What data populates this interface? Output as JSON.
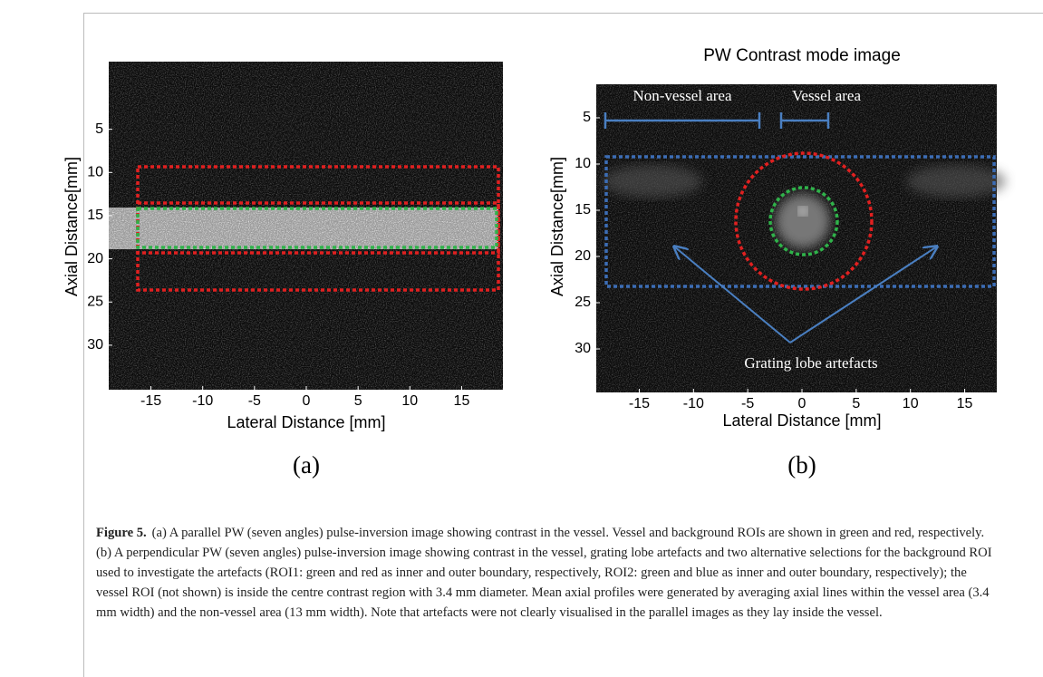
{
  "figure": {
    "panels": [
      {
        "label": "(a)",
        "xlabel": "Lateral Distance [mm]",
        "ylabel": "Axial Distance[mm]",
        "xticks": [
          -15,
          -10,
          -5,
          0,
          5,
          10,
          15
        ],
        "yticks": [
          5,
          10,
          15,
          20,
          25,
          30
        ]
      },
      {
        "label": "(b)",
        "title": "PW Contrast mode image",
        "xlabel": "Lateral Distance [mm]",
        "ylabel": "Axial Distance[mm]",
        "xticks": [
          -15,
          -10,
          -5,
          0,
          5,
          10,
          15
        ],
        "yticks": [
          5,
          10,
          15,
          20,
          25,
          30
        ],
        "annotations": [
          "Non-vessel area",
          "Vessel area",
          "Grating lobe artefacts"
        ]
      }
    ],
    "caption": {
      "label": "Figure 5.",
      "text": "(a) A parallel PW (seven angles) pulse-inversion image showing contrast in the vessel. Vessel and background ROIs are shown in green and red, respectively. (b) A perpendicular PW (seven angles) pulse-inversion image showing contrast in the vessel, grating lobe artefacts and two alternative selections for the background ROI used to investigate the artefacts (ROI1: green and red as inner and outer boundary, respectively, ROI2: green and blue as inner and outer boundary, respectively); the vessel ROI (not shown) is inside the centre contrast region with 3.4 mm diameter. Mean axial profiles were generated by averaging axial lines within the vessel area (3.4 mm width) and the non-vessel area (13 mm width). Note that artefacts were not clearly visualised in the parallel images as they lay inside the vessel."
    }
  }
}
